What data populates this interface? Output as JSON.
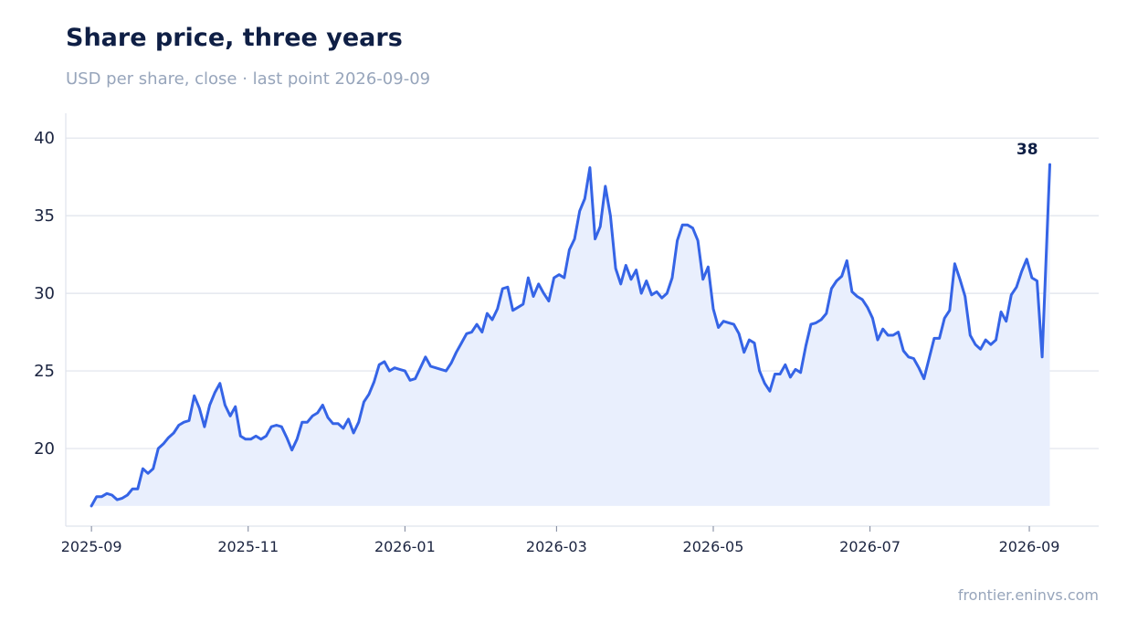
{
  "header": {
    "title": "Share price, three years",
    "subtitle": "USD per share, close · last point 2026-09-09"
  },
  "footer": {
    "source": "frontier.eninvs.com"
  },
  "colors": {
    "line": "#3564e6",
    "fill": "#e9effd",
    "grid": "#dfe3ec",
    "text": "#0f1f45",
    "muted": "#97a5bb"
  },
  "chart_data": {
    "type": "line",
    "title": "Share price, three years",
    "subtitle": "USD per share, close · last point 2026-09-09",
    "xlabel": "",
    "ylabel": "",
    "x_ticks": [
      "2025-09",
      "2025-11",
      "2026-01",
      "2026-03",
      "2026-05",
      "2026-07",
      "2026-09"
    ],
    "y_ticks": [
      20,
      25,
      30,
      35,
      40
    ],
    "xlim": [
      "2025-08-22",
      "2026-09-28"
    ],
    "ylim": [
      15.0,
      41.6
    ],
    "grid": true,
    "area_fill": true,
    "last_value_label": "38",
    "series": [
      {
        "points": [
          [
            "2025-09-01",
            16.3
          ],
          [
            "2025-09-03",
            16.9
          ],
          [
            "2025-09-05",
            16.9
          ],
          [
            "2025-09-07",
            17.1
          ],
          [
            "2025-09-09",
            17.0
          ],
          [
            "2025-09-11",
            16.7
          ],
          [
            "2025-09-13",
            16.8
          ],
          [
            "2025-09-15",
            17.0
          ],
          [
            "2025-09-17",
            17.4
          ],
          [
            "2025-09-19",
            17.4
          ],
          [
            "2025-09-21",
            18.7
          ],
          [
            "2025-09-23",
            18.4
          ],
          [
            "2025-09-25",
            18.7
          ],
          [
            "2025-09-27",
            20.0
          ],
          [
            "2025-09-29",
            20.3
          ],
          [
            "2025-10-01",
            20.7
          ],
          [
            "2025-10-03",
            21.0
          ],
          [
            "2025-10-05",
            21.5
          ],
          [
            "2025-10-07",
            21.7
          ],
          [
            "2025-10-09",
            21.8
          ],
          [
            "2025-10-11",
            23.4
          ],
          [
            "2025-10-13",
            22.6
          ],
          [
            "2025-10-15",
            21.4
          ],
          [
            "2025-10-17",
            22.8
          ],
          [
            "2025-10-19",
            23.6
          ],
          [
            "2025-10-21",
            24.2
          ],
          [
            "2025-10-23",
            22.8
          ],
          [
            "2025-10-25",
            22.1
          ],
          [
            "2025-10-27",
            22.7
          ],
          [
            "2025-10-29",
            20.8
          ],
          [
            "2025-10-31",
            20.6
          ],
          [
            "2025-11-02",
            20.6
          ],
          [
            "2025-11-04",
            20.8
          ],
          [
            "2025-11-06",
            20.6
          ],
          [
            "2025-11-08",
            20.8
          ],
          [
            "2025-11-10",
            21.4
          ],
          [
            "2025-11-12",
            21.5
          ],
          [
            "2025-11-14",
            21.4
          ],
          [
            "2025-11-16",
            20.7
          ],
          [
            "2025-11-18",
            19.9
          ],
          [
            "2025-11-20",
            20.6
          ],
          [
            "2025-11-22",
            21.7
          ],
          [
            "2025-11-24",
            21.7
          ],
          [
            "2025-11-26",
            22.1
          ],
          [
            "2025-11-28",
            22.3
          ],
          [
            "2025-11-30",
            22.8
          ],
          [
            "2025-12-02",
            22.0
          ],
          [
            "2025-12-04",
            21.6
          ],
          [
            "2025-12-06",
            21.6
          ],
          [
            "2025-12-08",
            21.3
          ],
          [
            "2025-12-10",
            21.9
          ],
          [
            "2025-12-12",
            21.0
          ],
          [
            "2025-12-14",
            21.7
          ],
          [
            "2025-12-16",
            23.0
          ],
          [
            "2025-12-18",
            23.5
          ],
          [
            "2025-12-20",
            24.3
          ],
          [
            "2025-12-22",
            25.4
          ],
          [
            "2025-12-24",
            25.6
          ],
          [
            "2025-12-26",
            25.0
          ],
          [
            "2025-12-28",
            25.2
          ],
          [
            "2025-12-30",
            25.1
          ],
          [
            "2026-01-01",
            25.0
          ],
          [
            "2026-01-03",
            24.4
          ],
          [
            "2026-01-05",
            24.5
          ],
          [
            "2026-01-07",
            25.2
          ],
          [
            "2026-01-09",
            25.9
          ],
          [
            "2026-01-11",
            25.3
          ],
          [
            "2026-01-13",
            25.2
          ],
          [
            "2026-01-15",
            25.1
          ],
          [
            "2026-01-17",
            25.0
          ],
          [
            "2026-01-19",
            25.5
          ],
          [
            "2026-01-21",
            26.2
          ],
          [
            "2026-01-23",
            26.8
          ],
          [
            "2026-01-25",
            27.4
          ],
          [
            "2026-01-27",
            27.5
          ],
          [
            "2026-01-29",
            28.0
          ],
          [
            "2026-01-31",
            27.5
          ],
          [
            "2026-02-02",
            28.7
          ],
          [
            "2026-02-04",
            28.3
          ],
          [
            "2026-02-06",
            29.0
          ],
          [
            "2026-02-08",
            30.3
          ],
          [
            "2026-02-10",
            30.4
          ],
          [
            "2026-02-12",
            28.9
          ],
          [
            "2026-02-14",
            29.1
          ],
          [
            "2026-02-16",
            29.3
          ],
          [
            "2026-02-18",
            31.0
          ],
          [
            "2026-02-20",
            29.8
          ],
          [
            "2026-02-22",
            30.6
          ],
          [
            "2026-02-24",
            30.0
          ],
          [
            "2026-02-26",
            29.5
          ],
          [
            "2026-02-28",
            31.0
          ],
          [
            "2026-03-02",
            31.2
          ],
          [
            "2026-03-04",
            31.0
          ],
          [
            "2026-03-06",
            32.8
          ],
          [
            "2026-03-08",
            33.5
          ],
          [
            "2026-03-10",
            35.3
          ],
          [
            "2026-03-12",
            36.1
          ],
          [
            "2026-03-14",
            38.1
          ],
          [
            "2026-03-16",
            33.5
          ],
          [
            "2026-03-18",
            34.3
          ],
          [
            "2026-03-20",
            36.9
          ],
          [
            "2026-03-22",
            35.0
          ],
          [
            "2026-03-24",
            31.6
          ],
          [
            "2026-03-26",
            30.6
          ],
          [
            "2026-03-28",
            31.8
          ],
          [
            "2026-03-30",
            30.9
          ],
          [
            "2026-04-01",
            31.5
          ],
          [
            "2026-04-03",
            30.0
          ],
          [
            "2026-04-05",
            30.8
          ],
          [
            "2026-04-07",
            29.9
          ],
          [
            "2026-04-09",
            30.1
          ],
          [
            "2026-04-11",
            29.7
          ],
          [
            "2026-04-13",
            30.0
          ],
          [
            "2026-04-15",
            31.0
          ],
          [
            "2026-04-17",
            33.4
          ],
          [
            "2026-04-19",
            34.4
          ],
          [
            "2026-04-21",
            34.4
          ],
          [
            "2026-04-23",
            34.2
          ],
          [
            "2026-04-25",
            33.4
          ],
          [
            "2026-04-27",
            30.9
          ],
          [
            "2026-04-29",
            31.7
          ],
          [
            "2026-05-01",
            29.0
          ],
          [
            "2026-05-03",
            27.8
          ],
          [
            "2026-05-05",
            28.2
          ],
          [
            "2026-05-07",
            28.1
          ],
          [
            "2026-05-09",
            28.0
          ],
          [
            "2026-05-11",
            27.4
          ],
          [
            "2026-05-13",
            26.2
          ],
          [
            "2026-05-15",
            27.0
          ],
          [
            "2026-05-17",
            26.8
          ],
          [
            "2026-05-19",
            25.0
          ],
          [
            "2026-05-21",
            24.2
          ],
          [
            "2026-05-23",
            23.7
          ],
          [
            "2026-05-25",
            24.8
          ],
          [
            "2026-05-27",
            24.8
          ],
          [
            "2026-05-29",
            25.4
          ],
          [
            "2026-05-31",
            24.6
          ],
          [
            "2026-06-02",
            25.1
          ],
          [
            "2026-06-04",
            24.9
          ],
          [
            "2026-06-06",
            26.6
          ],
          [
            "2026-06-08",
            28.0
          ],
          [
            "2026-06-10",
            28.1
          ],
          [
            "2026-06-12",
            28.3
          ],
          [
            "2026-06-14",
            28.7
          ],
          [
            "2026-06-16",
            30.3
          ],
          [
            "2026-06-18",
            30.8
          ],
          [
            "2026-06-20",
            31.1
          ],
          [
            "2026-06-22",
            32.1
          ],
          [
            "2026-06-24",
            30.1
          ],
          [
            "2026-06-26",
            29.8
          ],
          [
            "2026-06-28",
            29.6
          ],
          [
            "2026-06-30",
            29.1
          ],
          [
            "2026-07-02",
            28.4
          ],
          [
            "2026-07-04",
            27.0
          ],
          [
            "2026-07-06",
            27.7
          ],
          [
            "2026-07-08",
            27.3
          ],
          [
            "2026-07-10",
            27.3
          ],
          [
            "2026-07-12",
            27.5
          ],
          [
            "2026-07-14",
            26.3
          ],
          [
            "2026-07-16",
            25.9
          ],
          [
            "2026-07-18",
            25.8
          ],
          [
            "2026-07-20",
            25.2
          ],
          [
            "2026-07-22",
            24.5
          ],
          [
            "2026-07-24",
            25.8
          ],
          [
            "2026-07-26",
            27.1
          ],
          [
            "2026-07-28",
            27.1
          ],
          [
            "2026-07-30",
            28.4
          ],
          [
            "2026-08-01",
            28.9
          ],
          [
            "2026-08-03",
            31.9
          ],
          [
            "2026-08-05",
            30.9
          ],
          [
            "2026-08-07",
            29.8
          ],
          [
            "2026-08-09",
            27.3
          ],
          [
            "2026-08-11",
            26.7
          ],
          [
            "2026-08-13",
            26.4
          ],
          [
            "2026-08-15",
            27.0
          ],
          [
            "2026-08-17",
            26.7
          ],
          [
            "2026-08-19",
            27.0
          ],
          [
            "2026-08-21",
            28.8
          ],
          [
            "2026-08-23",
            28.2
          ],
          [
            "2026-08-25",
            29.9
          ],
          [
            "2026-08-27",
            30.4
          ],
          [
            "2026-08-29",
            31.4
          ],
          [
            "2026-08-31",
            32.2
          ],
          [
            "2026-09-02",
            31.0
          ],
          [
            "2026-09-04",
            30.8
          ],
          [
            "2026-09-06",
            25.9
          ],
          [
            "2026-09-09",
            38.3
          ]
        ]
      }
    ]
  }
}
